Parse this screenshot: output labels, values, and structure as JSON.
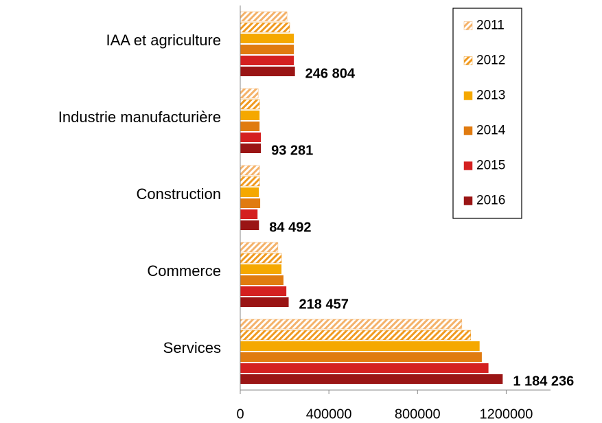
{
  "chart_data": {
    "type": "bar",
    "orientation": "horizontal",
    "categories": [
      "IAA et agriculture",
      "Industrie manufacturière",
      "Construction",
      "Commerce",
      "Services"
    ],
    "series": [
      {
        "name": "2011",
        "color": "#f4b26a",
        "hatch": true,
        "values": [
          211000,
          81000,
          87000,
          170000,
          1000000
        ]
      },
      {
        "name": "2012",
        "color": "#f09a20",
        "hatch": true,
        "values": [
          223000,
          87000,
          87000,
          186000,
          1040000
        ]
      },
      {
        "name": "2013",
        "color": "#f5a800",
        "values": [
          242000,
          87000,
          84000,
          186000,
          1080000
        ]
      },
      {
        "name": "2014",
        "color": "#e07b10",
        "values": [
          242000,
          87000,
          90000,
          195000,
          1090000
        ]
      },
      {
        "name": "2015",
        "color": "#d42020",
        "values": [
          242000,
          93000,
          78000,
          208000,
          1120000
        ]
      },
      {
        "name": "2016",
        "color": "#9a1515",
        "values": [
          246804,
          93281,
          84492,
          218457,
          1184236
        ],
        "value_labels": [
          "246 804",
          "93 281",
          "84 492",
          "218 457",
          "1 184 236"
        ]
      }
    ],
    "xlim": [
      0,
      1400000
    ],
    "xticks": [
      0,
      400000,
      800000,
      1200000
    ],
    "legend": "top-right"
  }
}
